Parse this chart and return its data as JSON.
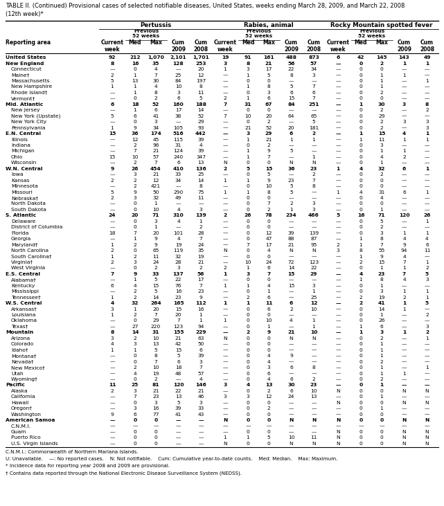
{
  "title": "TABLE II. (Continued) Provisional cases of selected notifiable diseases, United States, weeks ending March 28, 2009, and March 22, 2008\n(12th week)*",
  "col_groups": [
    "Pertussis",
    "Rabies, animal",
    "Rocky Mountain spotted fever"
  ],
  "rows": [
    [
      "United States",
      "92",
      "212",
      "1,070",
      "2,101",
      "1,701",
      "19",
      "91",
      "161",
      "488",
      "873",
      "6",
      "42",
      "145",
      "143",
      "49"
    ],
    [
      "New England",
      "8",
      "16",
      "35",
      "128",
      "253",
      "3",
      "8",
      "21",
      "56",
      "57",
      "—",
      "0",
      "2",
      "1",
      "1"
    ],
    [
      "Connecticut",
      "—",
      "0",
      "4",
      "—",
      "20",
      "1",
      "3",
      "17",
      "22",
      "34",
      "—",
      "0",
      "0",
      "—",
      "—"
    ],
    [
      "Maine†",
      "2",
      "1",
      "7",
      "25",
      "12",
      "—",
      "1",
      "5",
      "8",
      "3",
      "—",
      "0",
      "1",
      "1",
      "—"
    ],
    [
      "Massachusetts",
      "5",
      "13",
      "30",
      "84",
      "197",
      "—",
      "0",
      "0",
      "—",
      "—",
      "—",
      "0",
      "1",
      "—",
      "1"
    ],
    [
      "New Hampshire",
      "1",
      "1",
      "4",
      "10",
      "8",
      "—",
      "1",
      "8",
      "5",
      "7",
      "—",
      "0",
      "1",
      "—",
      "—"
    ],
    [
      "Rhode Island†",
      "—",
      "1",
      "8",
      "3",
      "11",
      "—",
      "0",
      "3",
      "6",
      "6",
      "—",
      "0",
      "2",
      "—",
      "—"
    ],
    [
      "Vermont†",
      "—",
      "0",
      "2",
      "6",
      "5",
      "2",
      "1",
      "6",
      "15",
      "7",
      "—",
      "0",
      "0",
      "—",
      "—"
    ],
    [
      "Mid. Atlantic",
      "6",
      "18",
      "52",
      "160",
      "188",
      "7",
      "31",
      "67",
      "84",
      "251",
      "—",
      "1",
      "30",
      "3",
      "8"
    ],
    [
      "New Jersey",
      "—",
      "1",
      "6",
      "17",
      "14",
      "—",
      "0",
      "0",
      "—",
      "—",
      "—",
      "0",
      "2",
      "—",
      "2"
    ],
    [
      "New York (Upstate)",
      "5",
      "6",
      "41",
      "38",
      "52",
      "7",
      "10",
      "20",
      "64",
      "65",
      "—",
      "0",
      "29",
      "—",
      "—"
    ],
    [
      "New York City",
      "—",
      "0",
      "3",
      "—",
      "29",
      "—",
      "0",
      "2",
      "—",
      "5",
      "—",
      "0",
      "2",
      "3",
      "3"
    ],
    [
      "Pennsylvania",
      "1",
      "9",
      "34",
      "105",
      "93",
      "—",
      "21",
      "52",
      "20",
      "181",
      "—",
      "0",
      "2",
      "—",
      "3"
    ],
    [
      "E.N. Central",
      "15",
      "36",
      "174",
      "516",
      "442",
      "—",
      "3",
      "29",
      "6",
      "2",
      "—",
      "1",
      "15",
      "4",
      "1"
    ],
    [
      "Illinois",
      "—",
      "12",
      "45",
      "115",
      "39",
      "—",
      "1",
      "21",
      "1",
      "1",
      "—",
      "1",
      "11",
      "1",
      "1"
    ],
    [
      "Indiana",
      "—",
      "2",
      "96",
      "31",
      "4",
      "—",
      "0",
      "2",
      "—",
      "—",
      "—",
      "0",
      "3",
      "—",
      "—"
    ],
    [
      "Michigan",
      "—",
      "7",
      "21",
      "124",
      "39",
      "—",
      "1",
      "9",
      "5",
      "—",
      "—",
      "0",
      "1",
      "1",
      "—"
    ],
    [
      "Ohio",
      "15",
      "10",
      "57",
      "240",
      "347",
      "—",
      "1",
      "7",
      "—",
      "1",
      "—",
      "0",
      "4",
      "2",
      "—"
    ],
    [
      "Wisconsin",
      "—",
      "2",
      "7",
      "6",
      "13",
      "N",
      "0",
      "0",
      "N",
      "N",
      "—",
      "0",
      "1",
      "—",
      "—"
    ],
    [
      "W.N. Central",
      "9",
      "26",
      "454",
      "410",
      "136",
      "2",
      "5",
      "15",
      "36",
      "23",
      "1",
      "4",
      "32",
      "6",
      "1"
    ],
    [
      "Iowa",
      "—",
      "3",
      "21",
      "33",
      "25",
      "—",
      "0",
      "5",
      "—",
      "2",
      "—",
      "0",
      "2",
      "—",
      "—"
    ],
    [
      "Kansas",
      "2",
      "2",
      "12",
      "34",
      "14",
      "1",
      "1",
      "9",
      "23",
      "7",
      "—",
      "0",
      "0",
      "—",
      "—"
    ],
    [
      "Minnesota",
      "—",
      "2",
      "421",
      "—",
      "8",
      "—",
      "0",
      "10",
      "5",
      "8",
      "—",
      "0",
      "0",
      "—",
      "—"
    ],
    [
      "Missouri",
      "5",
      "9",
      "50",
      "290",
      "75",
      "1",
      "1",
      "8",
      "5",
      "—",
      "1",
      "4",
      "31",
      "6",
      "1"
    ],
    [
      "Nebraska†",
      "2",
      "3",
      "32",
      "49",
      "11",
      "—",
      "0",
      "0",
      "—",
      "—",
      "—",
      "0",
      "4",
      "—",
      "—"
    ],
    [
      "North Dakota",
      "—",
      "0",
      "1",
      "—",
      "—",
      "—",
      "0",
      "7",
      "2",
      "3",
      "—",
      "0",
      "0",
      "—",
      "—"
    ],
    [
      "South Dakota",
      "—",
      "0",
      "10",
      "4",
      "3",
      "—",
      "0",
      "2",
      "1",
      "3",
      "—",
      "0",
      "1",
      "—",
      "—"
    ],
    [
      "S. Atlantic",
      "24",
      "20",
      "71",
      "310",
      "139",
      "2",
      "26",
      "78",
      "234",
      "466",
      "5",
      "16",
      "71",
      "120",
      "26"
    ],
    [
      "Delaware",
      "—",
      "0",
      "3",
      "4",
      "1",
      "—",
      "0",
      "0",
      "—",
      "—",
      "—",
      "0",
      "5",
      "—",
      "1"
    ],
    [
      "District of Columbia",
      "—",
      "0",
      "1",
      "—",
      "2",
      "—",
      "0",
      "0",
      "—",
      "—",
      "—",
      "0",
      "2",
      "—",
      "—"
    ],
    [
      "Florida",
      "18",
      "7",
      "20",
      "101",
      "28",
      "—",
      "0",
      "12",
      "39",
      "139",
      "—",
      "0",
      "3",
      "1",
      "1"
    ],
    [
      "Georgia",
      "—",
      "1",
      "9",
      "4",
      "7",
      "—",
      "0",
      "47",
      "88",
      "87",
      "—",
      "1",
      "8",
      "4",
      "4"
    ],
    [
      "Maryland†",
      "1",
      "2",
      "9",
      "19",
      "24",
      "—",
      "7",
      "17",
      "21",
      "95",
      "2",
      "1",
      "7",
      "9",
      "6"
    ],
    [
      "North Carolina",
      "2",
      "0",
      "65",
      "119",
      "35",
      "N",
      "0",
      "4",
      "N",
      "N",
      "3",
      "8",
      "55",
      "94",
      "11"
    ],
    [
      "South Carolina†",
      "1",
      "2",
      "11",
      "32",
      "19",
      "—",
      "0",
      "0",
      "—",
      "—",
      "—",
      "1",
      "9",
      "4",
      "—"
    ],
    [
      "Virginia†",
      "2",
      "3",
      "24",
      "28",
      "21",
      "—",
      "10",
      "24",
      "72",
      "123",
      "—",
      "2",
      "15",
      "7",
      "1"
    ],
    [
      "West Virginia",
      "—",
      "0",
      "2",
      "3",
      "2",
      "2",
      "1",
      "6",
      "14",
      "22",
      "—",
      "0",
      "1",
      "1",
      "2"
    ],
    [
      "E.S. Central",
      "7",
      "9",
      "33",
      "137",
      "56",
      "1",
      "3",
      "7",
      "15",
      "29",
      "—",
      "4",
      "23",
      "7",
      "5"
    ],
    [
      "Alabama†",
      "—",
      "1",
      "5",
      "22",
      "17",
      "—",
      "0",
      "0",
      "—",
      "—",
      "—",
      "1",
      "8",
      "4",
      "3"
    ],
    [
      "Kentucky",
      "6",
      "4",
      "15",
      "76",
      "7",
      "1",
      "1",
      "4",
      "15",
      "3",
      "—",
      "0",
      "1",
      "—",
      "—"
    ],
    [
      "Mississippi",
      "—",
      "2",
      "5",
      "16",
      "23",
      "—",
      "0",
      "1",
      "—",
      "1",
      "—",
      "0",
      "3",
      "1",
      "1"
    ],
    [
      "Tennessee†",
      "1",
      "2",
      "14",
      "23",
      "9",
      "—",
      "2",
      "6",
      "—",
      "25",
      "—",
      "2",
      "19",
      "2",
      "1"
    ],
    [
      "W.S. Central",
      "4",
      "32",
      "264",
      "165",
      "112",
      "1",
      "1",
      "11",
      "6",
      "12",
      "—",
      "2",
      "41",
      "1",
      "5"
    ],
    [
      "Arkansas†",
      "3",
      "1",
      "20",
      "15",
      "16",
      "—",
      "0",
      "6",
      "2",
      "10",
      "—",
      "0",
      "14",
      "1",
      "—"
    ],
    [
      "Louisiana",
      "1",
      "2",
      "7",
      "20",
      "1",
      "—",
      "0",
      "0",
      "—",
      "—",
      "—",
      "0",
      "1",
      "—",
      "2"
    ],
    [
      "Oklahoma",
      "—",
      "0",
      "29",
      "7",
      "1",
      "1",
      "0",
      "10",
      "4",
      "1",
      "—",
      "0",
      "26",
      "—",
      "—"
    ],
    [
      "Texas†",
      "—",
      "27",
      "220",
      "123",
      "94",
      "—",
      "0",
      "1",
      "—",
      "1",
      "—",
      "1",
      "6",
      "—",
      "3"
    ],
    [
      "Mountain",
      "8",
      "14",
      "31",
      "155",
      "229",
      "—",
      "2",
      "9",
      "21",
      "10",
      "—",
      "1",
      "3",
      "1",
      "2"
    ],
    [
      "Arizona",
      "3",
      "2",
      "10",
      "21",
      "63",
      "N",
      "0",
      "0",
      "N",
      "N",
      "—",
      "0",
      "2",
      "—",
      "1"
    ],
    [
      "Colorado",
      "4",
      "3",
      "13",
      "42",
      "50",
      "—",
      "0",
      "0",
      "—",
      "—",
      "—",
      "0",
      "1",
      "—",
      "—"
    ],
    [
      "Idaho†",
      "1",
      "1",
      "5",
      "15",
      "6",
      "—",
      "0",
      "0",
      "—",
      "—",
      "—",
      "0",
      "1",
      "—",
      "—"
    ],
    [
      "Montana†",
      "—",
      "0",
      "8",
      "5",
      "39",
      "—",
      "0",
      "4",
      "9",
      "—",
      "—",
      "0",
      "1",
      "—",
      "—"
    ],
    [
      "Nevada†",
      "—",
      "0",
      "7",
      "6",
      "3",
      "—",
      "0",
      "4",
      "—",
      "—",
      "—",
      "0",
      "2",
      "—",
      "—"
    ],
    [
      "New Mexico†",
      "—",
      "2",
      "10",
      "18",
      "7",
      "—",
      "0",
      "3",
      "6",
      "8",
      "—",
      "0",
      "1",
      "—",
      "1"
    ],
    [
      "Utah",
      "—",
      "4",
      "19",
      "48",
      "57",
      "—",
      "0",
      "6",
      "—",
      "—",
      "—",
      "0",
      "1",
      "1",
      "—"
    ],
    [
      "Wyoming†",
      "—",
      "0",
      "2",
      "—",
      "4",
      "—",
      "0",
      "4",
      "6",
      "2",
      "—",
      "0",
      "2",
      "—",
      "—"
    ],
    [
      "Pacific",
      "11",
      "25",
      "81",
      "120",
      "146",
      "3",
      "4",
      "13",
      "30",
      "23",
      "—",
      "0",
      "1",
      "—",
      "—"
    ],
    [
      "Alaska",
      "2",
      "3",
      "21",
      "22",
      "21",
      "—",
      "0",
      "2",
      "6",
      "10",
      "N",
      "0",
      "0",
      "N",
      "N"
    ],
    [
      "California",
      "—",
      "7",
      "23",
      "13",
      "46",
      "3",
      "3",
      "12",
      "24",
      "13",
      "—",
      "0",
      "1",
      "—",
      "—"
    ],
    [
      "Hawaii",
      "—",
      "0",
      "3",
      "5",
      "3",
      "—",
      "0",
      "0",
      "—",
      "—",
      "N",
      "0",
      "0",
      "N",
      "N"
    ],
    [
      "Oregon†",
      "—",
      "3",
      "16",
      "39",
      "33",
      "—",
      "0",
      "2",
      "—",
      "—",
      "—",
      "0",
      "1",
      "—",
      "—"
    ],
    [
      "Washington",
      "9",
      "6",
      "77",
      "41",
      "43",
      "—",
      "0",
      "0",
      "—",
      "—",
      "—",
      "0",
      "0",
      "—",
      "—"
    ],
    [
      "American Samoa",
      "—",
      "0",
      "0",
      "—",
      "—",
      "N",
      "0",
      "0",
      "N",
      "N",
      "N",
      "0",
      "0",
      "N",
      "N"
    ],
    [
      "C.N.M.I.",
      "—",
      "—",
      "—",
      "—",
      "—",
      "—",
      "—",
      "—",
      "—",
      "—",
      "—",
      "—",
      "—",
      "—",
      "—"
    ],
    [
      "Guam",
      "—",
      "0",
      "0",
      "—",
      "—",
      "—",
      "0",
      "0",
      "—",
      "—",
      "N",
      "0",
      "0",
      "N",
      "N"
    ],
    [
      "Puerto Rico",
      "—",
      "0",
      "0",
      "—",
      "—",
      "1",
      "1",
      "5",
      "10",
      "11",
      "N",
      "0",
      "0",
      "N",
      "N"
    ],
    [
      "U.S. Virgin Islands",
      "—",
      "0",
      "0",
      "—",
      "—",
      "N",
      "0",
      "0",
      "N",
      "N",
      "N",
      "0",
      "0",
      "N",
      "N"
    ]
  ],
  "bold_rows": [
    0,
    1,
    8,
    13,
    19,
    27,
    37,
    42,
    47,
    56,
    62
  ],
  "footer_lines": [
    "C.N.M.I.: Commonwealth of Northern Mariana Islands.",
    "U: Unavailable.    —: No reported cases.    N: Not notifiable.    Cum: Cumulative year-to-date counts.    Med: Median.    Max: Maximum.",
    "* Incidence data for reporting year 2008 and 2009 are provisional.",
    "† Contains data reported through the National Electronic Disease Surveillance System (NEDSS)."
  ]
}
